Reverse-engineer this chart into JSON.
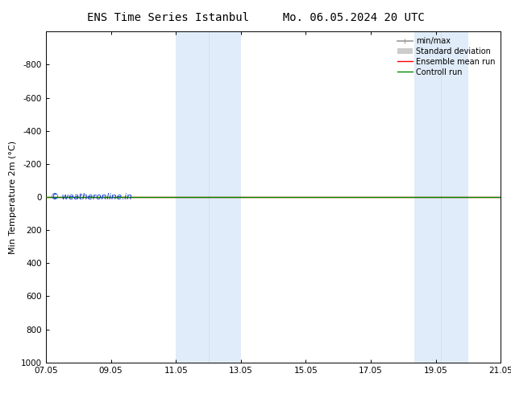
{
  "title_left": "ENS Time Series Istanbul",
  "title_right": "Mo. 06.05.2024 20 UTC",
  "ylabel": "Min Temperature 2m (°C)",
  "ylim_bottom": 1000,
  "ylim_top": -1000,
  "yticks": [
    -800,
    -600,
    -400,
    -200,
    0,
    200,
    400,
    600,
    800,
    1000
  ],
  "xtick_labels": [
    "07.05",
    "09.05",
    "11.05",
    "13.05",
    "15.05",
    "17.05",
    "19.05",
    "21.05"
  ],
  "xtick_positions": [
    0,
    2,
    4,
    6,
    8,
    10,
    12,
    14
  ],
  "xlim": [
    0,
    14
  ],
  "shaded_bands": [
    {
      "start": 4.0,
      "end": 4.67
    },
    {
      "start": 4.67,
      "end": 6.0
    },
    {
      "start": 11.33,
      "end": 12.0
    },
    {
      "start": 12.0,
      "end": 12.67
    }
  ],
  "shade_color": "#cce0f5",
  "shade_alpha": 0.6,
  "control_run_y": 0,
  "ensemble_mean_y": 0,
  "background_color": "#ffffff",
  "legend_items": [
    {
      "label": "min/max",
      "color": "#999999",
      "lw": 1.2
    },
    {
      "label": "Standard deviation",
      "color": "#cccccc",
      "lw": 5
    },
    {
      "label": "Ensemble mean run",
      "color": "#ff0000",
      "lw": 1.0
    },
    {
      "label": "Controll run",
      "color": "#008800",
      "lw": 1.0
    }
  ],
  "watermark": "© weatheronline.in",
  "watermark_color": "#0033cc",
  "title_fontsize": 10,
  "axis_fontsize": 7.5,
  "ylabel_fontsize": 8,
  "legend_fontsize": 7
}
